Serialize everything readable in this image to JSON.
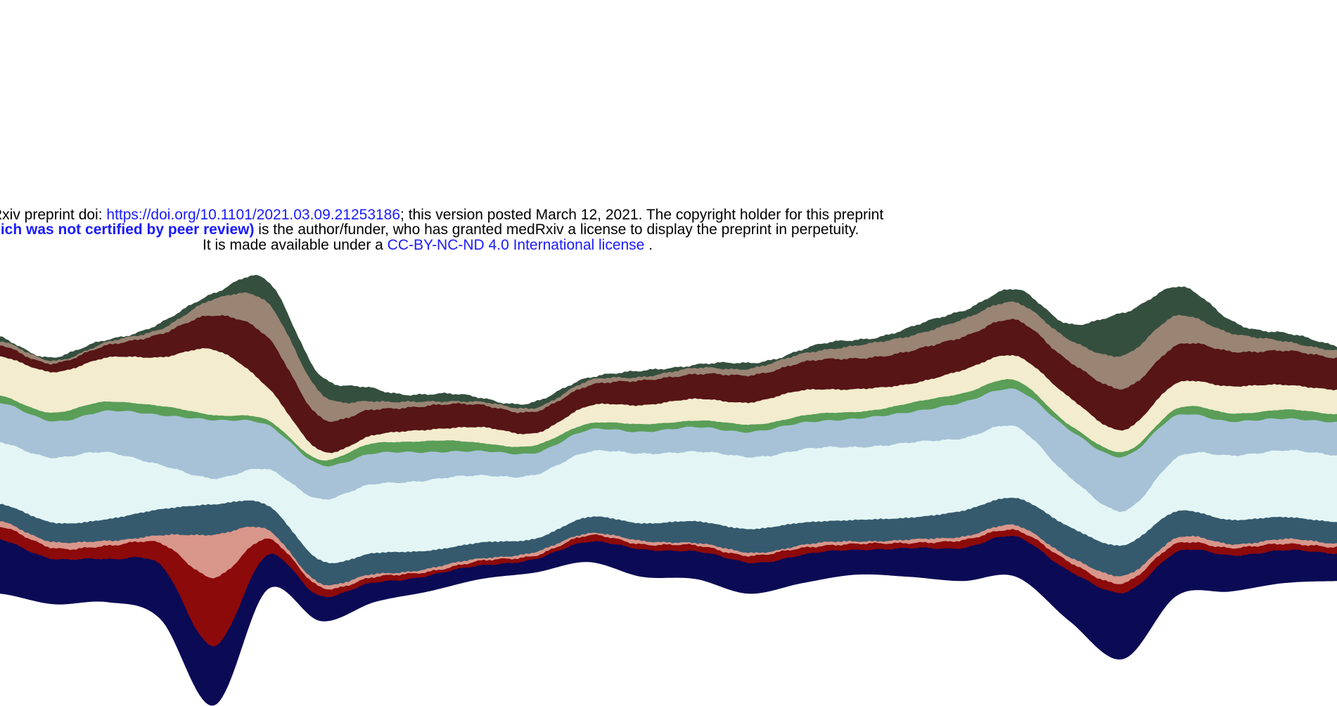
{
  "preprint_notice": {
    "line1_prefix": "Rxiv preprint doi: ",
    "line1_doi": "https://doi.org/10.1101/2021.03.09.21253186",
    "line1_suffix": "; this version posted March 12, 2021. The copyright holder for this preprint",
    "line2_bold": "hich was not certified by peer review)",
    "line2_suffix": " is the author/funder, who has granted medRxiv a license to display the preprint in perpetuity.",
    "line3_prefix": "It is made available under a ",
    "line3_license": "CC-BY-NC-ND 4.0 International license",
    "line3_suffix": " ."
  },
  "chart_data": {
    "type": "area",
    "layout": "streamgraph",
    "title": "",
    "xlabel": "",
    "ylabel": "",
    "axes_visible": false,
    "grid": false,
    "legend": "none",
    "x": [
      0,
      0.04,
      0.08,
      0.12,
      0.16,
      0.2,
      0.24,
      0.28,
      0.32,
      0.36,
      0.4,
      0.44,
      0.48,
      0.52,
      0.56,
      0.6,
      0.64,
      0.68,
      0.72,
      0.76,
      0.8,
      0.84,
      0.88,
      0.92,
      0.96,
      1
    ],
    "baseline": [
      -18,
      -23,
      -22,
      -30,
      -71,
      -16,
      -31,
      -22,
      -17,
      -11,
      -8,
      -3,
      -10,
      -11,
      -18,
      -13,
      -9,
      -10,
      -12,
      -10,
      -31,
      -49,
      -19,
      -17,
      -13,
      -12
    ],
    "series": [
      {
        "color": "#0b0a55",
        "values": [
          3.9,
          3.2,
          3.1,
          3.8,
          4.3,
          2.4,
          1.8,
          1.4,
          1.1,
          1.0,
          0.9,
          1.5,
          1.9,
          2.0,
          2.2,
          2.0,
          1.8,
          2.0,
          2.4,
          2.8,
          3.6,
          4.7,
          3.1,
          2.6,
          2.3,
          2.0
        ]
      },
      {
        "color": "#8c0a0a",
        "values": [
          0.9,
          0.8,
          0.9,
          1.6,
          4.8,
          1.2,
          0.6,
          0.4,
          0.3,
          0.3,
          0.3,
          0.4,
          0.4,
          0.4,
          0.5,
          0.5,
          0.4,
          0.4,
          0.5,
          0.5,
          0.6,
          0.7,
          0.6,
          0.5,
          0.5,
          0.4
        ]
      },
      {
        "color": "#d9968a",
        "values": [
          0.4,
          0.4,
          0.4,
          0.5,
          3.1,
          0.6,
          0.3,
          0.2,
          0.2,
          0.2,
          0.2,
          0.2,
          0.2,
          0.2,
          0.2,
          0.2,
          0.2,
          0.2,
          0.3,
          0.3,
          0.4,
          0.5,
          0.4,
          0.3,
          0.3,
          0.3
        ]
      },
      {
        "color": "#355a6e",
        "values": [
          1.2,
          1.4,
          1.5,
          1.9,
          2.1,
          1.8,
          1.6,
          1.5,
          1.3,
          1.1,
          1.0,
          1.1,
          1.3,
          1.5,
          1.7,
          1.6,
          1.5,
          1.6,
          1.8,
          2.0,
          2.1,
          2.2,
          1.9,
          1.7,
          1.6,
          1.5
        ]
      },
      {
        "color": "#e3f6f5",
        "values": [
          4.4,
          4.6,
          4.8,
          3.1,
          1.9,
          2.5,
          4.4,
          4.9,
          5.0,
          4.8,
          4.5,
          4.7,
          4.9,
          5.0,
          5.1,
          5.2,
          5.2,
          5.3,
          5.2,
          5.0,
          3.6,
          2.4,
          3.8,
          4.6,
          4.7,
          4.8
        ]
      },
      {
        "color": "#a7c2d7",
        "values": [
          2.8,
          2.6,
          2.9,
          3.6,
          4.1,
          3.2,
          2.4,
          2.2,
          2.0,
          1.7,
          1.6,
          1.5,
          1.6,
          1.7,
          1.8,
          1.9,
          2.0,
          2.2,
          2.5,
          2.7,
          3.3,
          3.9,
          3.0,
          2.4,
          2.3,
          2.3
        ]
      },
      {
        "color": "#5a9e58",
        "values": [
          0.5,
          0.6,
          0.7,
          0.6,
          0.4,
          0.3,
          0.4,
          0.7,
          0.8,
          0.6,
          0.5,
          0.5,
          0.5,
          0.5,
          0.5,
          0.5,
          0.5,
          0.6,
          0.7,
          0.6,
          0.4,
          0.3,
          0.5,
          0.6,
          0.6,
          0.6
        ]
      },
      {
        "color": "#f3ecce",
        "values": [
          2.8,
          2.9,
          3.1,
          3.5,
          4.6,
          2.4,
          0.6,
          0.6,
          0.8,
          1.1,
          0.9,
          1.2,
          1.4,
          1.5,
          1.6,
          1.8,
          1.6,
          1.4,
          1.6,
          1.8,
          1.9,
          1.6,
          1.8,
          1.9,
          1.8,
          1.7
        ]
      },
      {
        "color": "#571515",
        "values": [
          0.8,
          0.6,
          0.9,
          1.6,
          2.5,
          3.5,
          2.4,
          1.8,
          1.7,
          1.6,
          1.5,
          1.5,
          1.7,
          1.8,
          1.9,
          2.0,
          2.2,
          2.3,
          2.4,
          2.5,
          2.6,
          2.9,
          2.7,
          2.5,
          2.4,
          2.3
        ]
      },
      {
        "color": "#9a8474",
        "values": [
          0.3,
          0.2,
          0.2,
          0.4,
          1.1,
          2.5,
          1.7,
          0.6,
          0.3,
          0.2,
          0.3,
          0.3,
          0.3,
          0.4,
          0.5,
          0.6,
          0.9,
          1.1,
          1.2,
          1.3,
          1.5,
          2.4,
          2.1,
          1.3,
          0.7,
          0.5
        ]
      },
      {
        "color": "#354f3e",
        "values": [
          0.2,
          0.2,
          0.2,
          0.3,
          0.5,
          1.4,
          1.3,
          0.8,
          0.5,
          0.3,
          0.3,
          0.3,
          0.3,
          0.3,
          0.3,
          0.3,
          0.4,
          0.5,
          0.7,
          0.8,
          1.2,
          2.9,
          2.1,
          0.9,
          0.5,
          0.4
        ]
      }
    ]
  }
}
